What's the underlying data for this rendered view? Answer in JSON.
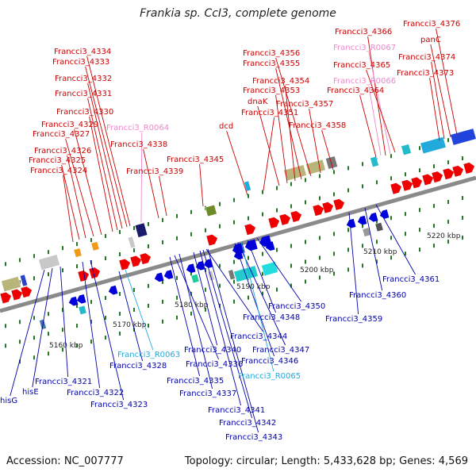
{
  "title": "Frankia sp. CcI3, complete genome",
  "footer": {
    "accession": "Accession: NC_007777",
    "summary": "Topology: circular; Length: 5,433,628 bp; Genes: 4,569"
  },
  "colors": {
    "forward_label": "#cc0000",
    "reverse_label": "#0000aa",
    "rna_label_forward": "#ee88cc",
    "rna_label_reverse": "#22aadd",
    "forward_gene": "#ee0000",
    "reverse_gene": "#0000dd",
    "backbone": "#8a8a8a",
    "tick": "#227722"
  },
  "scale_ticks": [
    "5160 kbp",
    "5170 kbp",
    "5180 kbp",
    "5190 kbp",
    "5200 kbp",
    "5210 kbp",
    "5220 kbp"
  ],
  "forward_genes": [
    "Francci3_4324",
    "Francci3_4325",
    "Francci3_4326",
    "Francci3_4327",
    "Francci3_4329",
    "Francci3_4330",
    "Francci3_4331",
    "Francci3_4332",
    "Francci3_4333",
    "Francci3_4334",
    "Francci3_R0064",
    "Francci3_4338",
    "Francci3_4339",
    "Francci3_4345",
    "dcd",
    "Francci3_4351",
    "dnaK",
    "Francci3_4353",
    "Francci3_4354",
    "Francci3_4355",
    "Francci3_4356",
    "Francci3_4357",
    "Francci3_4358",
    "Francci3_4366",
    "Francci3_R0067",
    "Francci3_4365",
    "Francci3_R0066",
    "Francci3_4364",
    "Francci3_4376",
    "panC",
    "Francci3_4374",
    "Francci3_4373"
  ],
  "reverse_genes": [
    "hisG",
    "hisE",
    "Francci3_4321",
    "Francci3_4322",
    "Francci3_4323",
    "Francci3_R0063",
    "Francci3_4328",
    "Francci3_4336",
    "Francci3_4335",
    "Francci3_4337",
    "Francci3_4340",
    "Francci3_4344",
    "Francci3_4341",
    "Francci3_4342",
    "Francci3_4343",
    "Francci3_4347",
    "Francci3_4346",
    "Francci3_R0065",
    "Francci3_4348",
    "Francci3_4350",
    "Francci3_4359",
    "Francci3_4360",
    "Francci3_4361"
  ]
}
